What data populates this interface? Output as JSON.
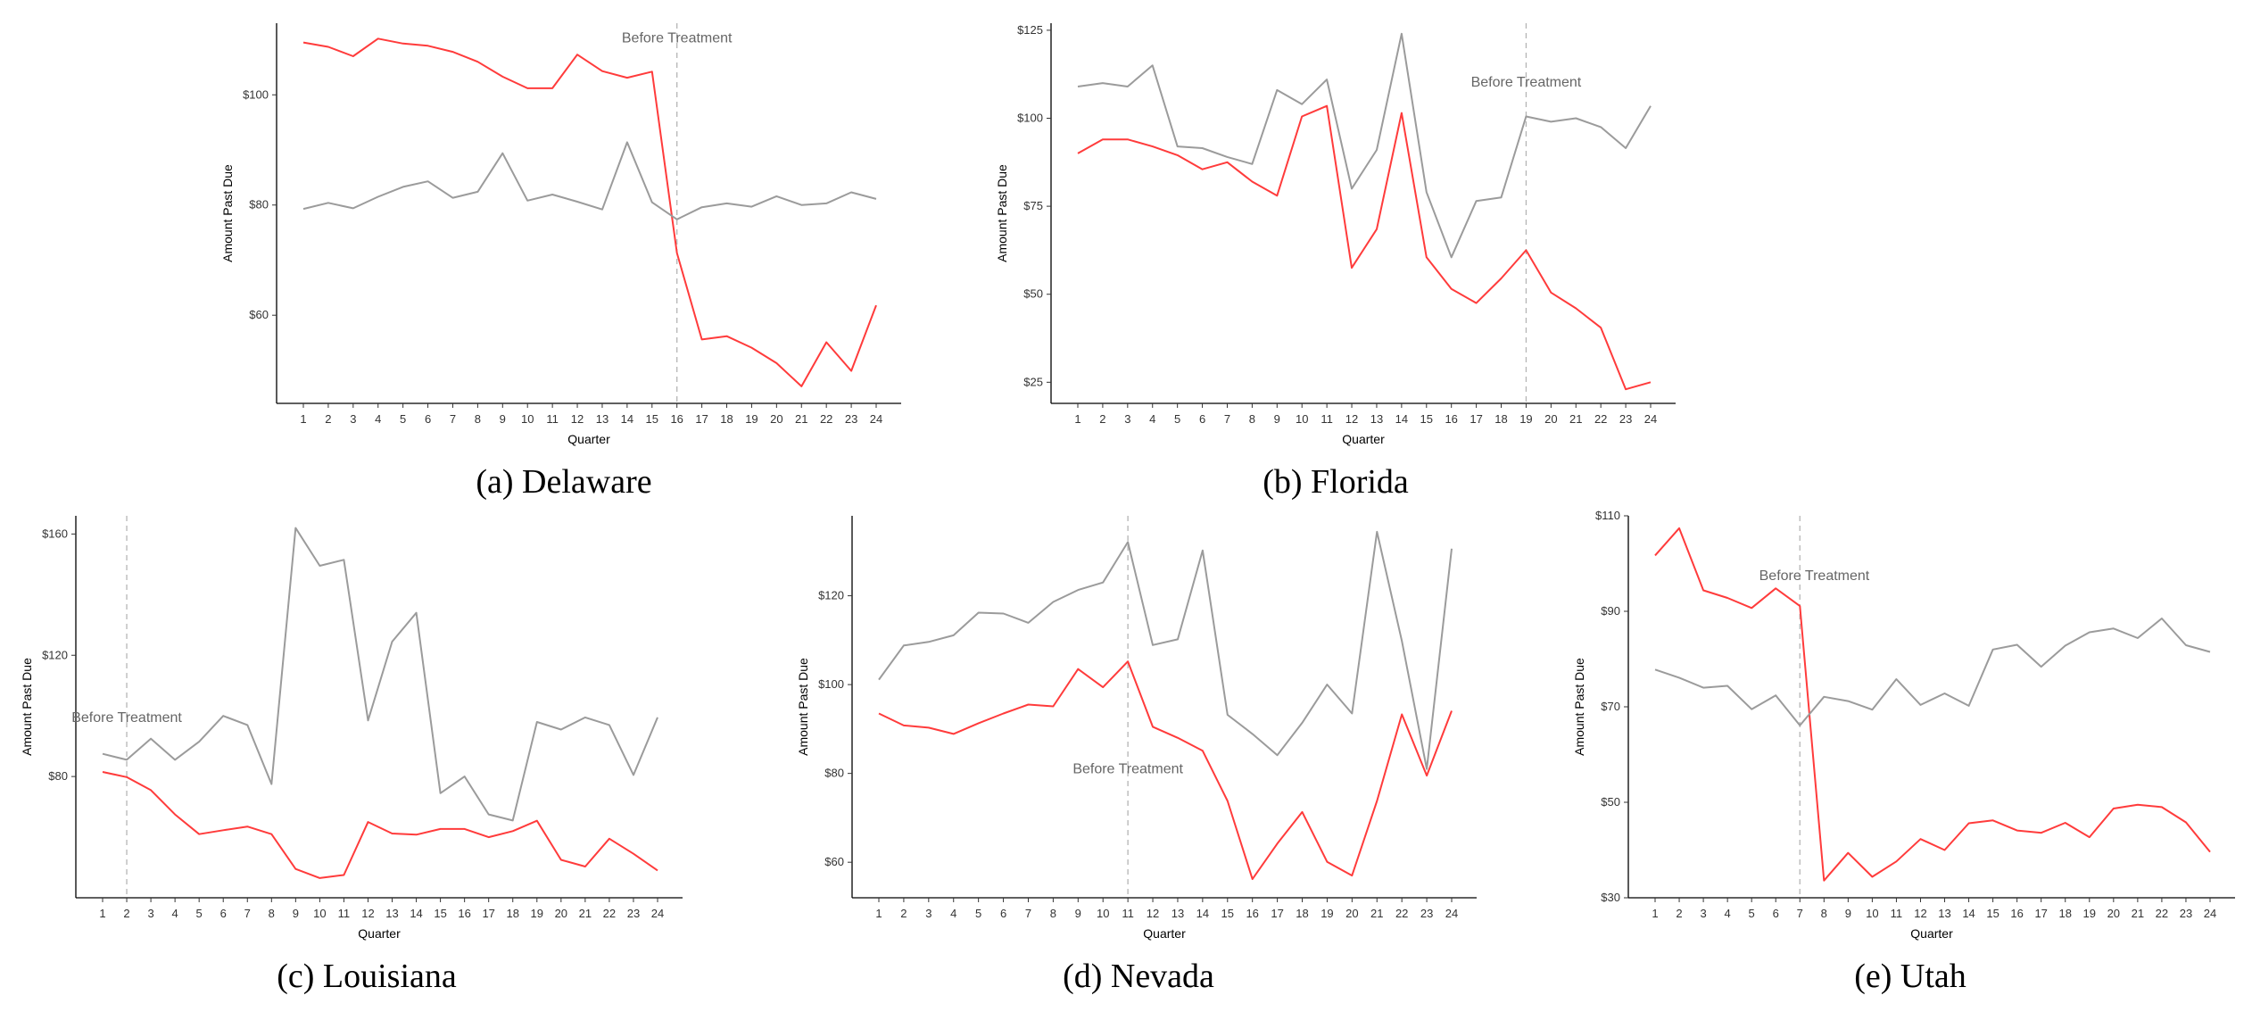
{
  "chart_data": [
    {
      "type": "line",
      "caption": "(a) Delaware",
      "xlabel": "Quarter",
      "ylabel": "Amount Past Due",
      "x": [
        1,
        2,
        3,
        4,
        5,
        6,
        7,
        8,
        9,
        10,
        11,
        12,
        13,
        14,
        15,
        16,
        17,
        18,
        19,
        20,
        21,
        22,
        23,
        24
      ],
      "ylim": [
        44,
        113
      ],
      "yticks": [
        60,
        80,
        100
      ],
      "ytick_labels": [
        "$60",
        "$80",
        "$100"
      ],
      "vline_x": 16,
      "annotation": {
        "text": "Before Treatment",
        "x": 16,
        "y": 109.5
      },
      "grid": false,
      "series": [
        {
          "color": "#ff3b3b",
          "values": [
            109.5,
            108.7,
            107,
            110.2,
            109.3,
            108.9,
            107.8,
            106,
            103.3,
            101.2,
            101.2,
            107.3,
            104.3,
            103.1,
            104.2,
            71.3,
            55.6,
            56.2,
            54.1,
            51.3,
            47.1,
            55.1,
            49.9,
            61.8
          ]
        },
        {
          "color": "#9b9b9b",
          "values": [
            79.3,
            80.4,
            79.4,
            81.5,
            83.3,
            84.3,
            81.3,
            82.4,
            89.4,
            80.8,
            81.9,
            80.6,
            79.2,
            91.4,
            80.5,
            77.4,
            79.6,
            80.3,
            79.7,
            81.6,
            80,
            80.3,
            82.3,
            81.1
          ]
        }
      ]
    },
    {
      "type": "line",
      "caption": "(b) Florida",
      "xlabel": "Quarter",
      "ylabel": "Amount Past Due",
      "x": [
        1,
        2,
        3,
        4,
        5,
        6,
        7,
        8,
        9,
        10,
        11,
        12,
        13,
        14,
        15,
        16,
        17,
        18,
        19,
        20,
        21,
        22,
        23,
        24
      ],
      "ylim": [
        19,
        127
      ],
      "yticks": [
        25,
        50,
        75,
        100,
        125
      ],
      "ytick_labels": [
        "$25",
        "$50",
        "$75",
        "$100",
        "$125"
      ],
      "vline_x": 19,
      "annotation": {
        "text": "Before Treatment",
        "x": 19,
        "y": 109
      },
      "grid": false,
      "series": [
        {
          "color": "#ff3b3b",
          "values": [
            90,
            94,
            94,
            92,
            89.5,
            85.5,
            87.5,
            82,
            78,
            100.5,
            103.5,
            57.5,
            68.5,
            101.5,
            60.5,
            51.5,
            47.5,
            54.5,
            62.5,
            50.5,
            46,
            40.5,
            23,
            25
          ]
        },
        {
          "color": "#9b9b9b",
          "values": [
            109,
            110,
            109,
            115,
            92,
            91.5,
            89,
            87,
            108,
            104,
            111,
            80,
            91,
            124,
            79,
            60.5,
            76.5,
            77.5,
            100.5,
            99,
            100,
            97.5,
            91.5,
            103.5
          ]
        }
      ]
    },
    {
      "type": "line",
      "caption": "(c) Louisiana",
      "xlabel": "Quarter",
      "ylabel": "Amount Past Due",
      "x": [
        1,
        2,
        3,
        4,
        5,
        6,
        7,
        8,
        9,
        10,
        11,
        12,
        13,
        14,
        15,
        16,
        17,
        18,
        19,
        20,
        21,
        22,
        23,
        24
      ],
      "ylim": [
        40,
        166
      ],
      "yticks": [
        80,
        120,
        160
      ],
      "ytick_labels": [
        "$80",
        "$120",
        "$160"
      ],
      "vline_x": 2,
      "annotation": {
        "text": "Before Treatment",
        "x": 2,
        "y": 98
      },
      "grid": false,
      "series": [
        {
          "color": "#ff3b3b",
          "values": [
            81.5,
            79.8,
            75.5,
            67.5,
            61,
            62.3,
            63.5,
            61,
            49.5,
            46.5,
            47.5,
            65,
            61.2,
            60.8,
            62.7,
            62.7,
            60,
            62,
            65.4,
            52.5,
            50.3,
            59.5,
            54.5,
            49
          ]
        },
        {
          "color": "#9b9b9b",
          "values": [
            87.5,
            85.5,
            92.5,
            85.5,
            91.5,
            100,
            97,
            77.5,
            162,
            149.5,
            151.5,
            98.5,
            124.5,
            134,
            74.5,
            80,
            67.5,
            65.5,
            98,
            95.5,
            99.5,
            97,
            80.5,
            99.5
          ]
        }
      ]
    },
    {
      "type": "line",
      "caption": "(d) Nevada",
      "xlabel": "Quarter",
      "ylabel": "Amount Past Due",
      "x": [
        1,
        2,
        3,
        4,
        5,
        6,
        7,
        8,
        9,
        10,
        11,
        12,
        13,
        14,
        15,
        16,
        17,
        18,
        19,
        20,
        21,
        22,
        23,
        24
      ],
      "ylim": [
        52,
        138
      ],
      "yticks": [
        60,
        80,
        100,
        120
      ],
      "ytick_labels": [
        "$60",
        "$80",
        "$100",
        "$120"
      ],
      "vline_x": 11,
      "annotation": {
        "text": "Before Treatment",
        "x": 11,
        "y": 80
      },
      "grid": false,
      "series": [
        {
          "color": "#ff3b3b",
          "values": [
            93.5,
            90.8,
            90.3,
            88.9,
            91.3,
            93.5,
            95.5,
            95.1,
            103.5,
            99.4,
            105.2,
            90.5,
            88,
            85.1,
            73.8,
            56.2,
            64.2,
            71.3,
            60.1,
            57,
            73.8,
            93.3,
            79.5,
            94.1
          ]
        },
        {
          "color": "#9b9b9b",
          "values": [
            101.1,
            108.8,
            109.6,
            111.1,
            116.2,
            116,
            113.9,
            118.6,
            121.3,
            123,
            132.1,
            108.9,
            110.2,
            130.2,
            93.2,
            88.9,
            84.1,
            91.4,
            100,
            93.5,
            134.4,
            109.8,
            81,
            130.6
          ]
        }
      ]
    },
    {
      "type": "line",
      "caption": "(e) Utah",
      "xlabel": "Quarter",
      "ylabel": "Amount Past Due",
      "x": [
        1,
        2,
        3,
        4,
        5,
        6,
        7,
        8,
        9,
        10,
        11,
        12,
        13,
        14,
        15,
        16,
        17,
        18,
        19,
        20,
        21,
        22,
        23,
        24
      ],
      "ylim": [
        30,
        110
      ],
      "yticks": [
        30,
        50,
        70,
        90,
        110
      ],
      "ytick_labels": [
        "$30",
        "$50",
        "$70",
        "$90",
        "$110"
      ],
      "vline_x": 7,
      "annotation": {
        "text": "Before Treatment",
        "x": 7,
        "y": 96.5
      },
      "grid": false,
      "series": [
        {
          "color": "#ff3b3b",
          "values": [
            101.7,
            107.4,
            94.4,
            92.8,
            90.7,
            94.8,
            91.1,
            33.6,
            39.4,
            34.4,
            37.6,
            42.3,
            40,
            45.6,
            46.2,
            44.1,
            43.6,
            45.7,
            42.7,
            48.7,
            49.5,
            49,
            45.8,
            39.6
          ]
        },
        {
          "color": "#9b9b9b",
          "values": [
            77.8,
            76.1,
            74,
            74.4,
            69.5,
            72.4,
            66.1,
            72.1,
            71.2,
            69.4,
            75.8,
            70.4,
            72.8,
            70.2,
            82,
            83,
            78.4,
            82.8,
            85.6,
            86.4,
            84.4,
            88.5,
            82.9,
            81.5
          ]
        }
      ]
    }
  ]
}
